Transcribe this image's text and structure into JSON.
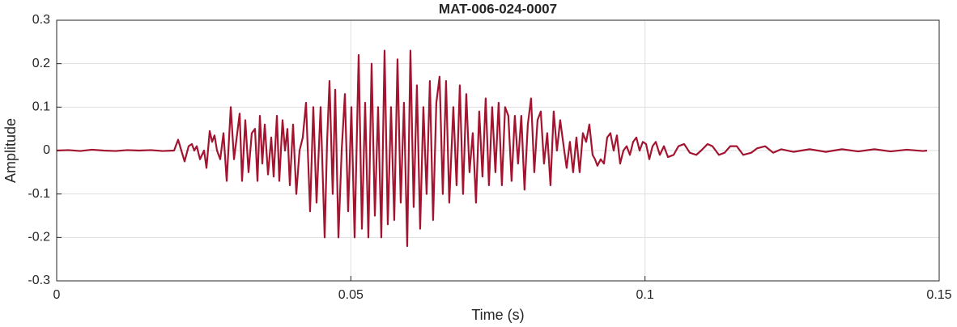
{
  "chart_data": {
    "type": "line",
    "title": "MAT-006-024-0007",
    "xlabel": "Time (s)",
    "ylabel": "Amplitude",
    "color": "#a2142f",
    "grid": true,
    "xlim": [
      0,
      0.15
    ],
    "xticks": [
      0,
      0.05,
      0.1,
      0.15
    ],
    "ylim": [
      -0.3,
      0.3
    ],
    "yticks": [
      0.3,
      0.2,
      0.1,
      0,
      -0.1,
      -0.2,
      -0.3
    ],
    "x": [
      0,
      0.002,
      0.004,
      0.006,
      0.008,
      0.01,
      0.012,
      0.014,
      0.016,
      0.018,
      0.01995,
      0.02064,
      0.02119,
      0.02174,
      0.02243,
      0.02298,
      0.02339,
      0.02381,
      0.02436,
      0.02505,
      0.02546,
      0.02601,
      0.02642,
      0.02683,
      0.02725,
      0.0278,
      0.02835,
      0.0289,
      0.02959,
      0.03014,
      0.03069,
      0.0311,
      0.03151,
      0.03206,
      0.03261,
      0.03316,
      0.03371,
      0.03413,
      0.03454,
      0.03495,
      0.03537,
      0.03592,
      0.03647,
      0.03688,
      0.03743,
      0.03784,
      0.03839,
      0.03881,
      0.03922,
      0.03963,
      0.04018,
      0.04073,
      0.04128,
      0.04183,
      0.04238,
      0.04307,
      0.04362,
      0.04417,
      0.04486,
      0.04555,
      0.04596,
      0.04637,
      0.04692,
      0.04734,
      0.04789,
      0.04844,
      0.04899,
      0.04954,
      0.05009,
      0.05064,
      0.05133,
      0.05188,
      0.05243,
      0.05298,
      0.05353,
      0.05408,
      0.05463,
      0.05518,
      0.05573,
      0.05628,
      0.05683,
      0.05738,
      0.05793,
      0.05848,
      0.05903,
      0.05958,
      0.06013,
      0.06068,
      0.06123,
      0.06178,
      0.06233,
      0.06288,
      0.06343,
      0.06398,
      0.06453,
      0.06508,
      0.06563,
      0.06618,
      0.06673,
      0.06742,
      0.06797,
      0.06852,
      0.06907,
      0.06962,
      0.07017,
      0.07072,
      0.07127,
      0.07182,
      0.07237,
      0.07292,
      0.07347,
      0.07402,
      0.07457,
      0.07512,
      0.07567,
      0.07622,
      0.07677,
      0.07732,
      0.07787,
      0.07842,
      0.07897,
      0.07952,
      0.08008,
      0.08063,
      0.08118,
      0.08173,
      0.08228,
      0.08283,
      0.08338,
      0.08393,
      0.08448,
      0.08503,
      0.08558,
      0.08627,
      0.08668,
      0.08723,
      0.08778,
      0.08834,
      0.08889,
      0.08944,
      0.08999,
      0.09054,
      0.09109,
      0.0915,
      0.09191,
      0.09247,
      0.09302,
      0.09357,
      0.09412,
      0.09467,
      0.09522,
      0.09577,
      0.09633,
      0.09688,
      0.09743,
      0.09798,
      0.09853,
      0.09908,
      0.09963,
      0.10018,
      0.10073,
      0.10128,
      0.10183,
      0.10252,
      0.10321,
      0.1039,
      0.10486,
      0.10568,
      0.10665,
      0.10761,
      0.10871,
      0.10954,
      0.11064,
      0.11146,
      0.11256,
      0.11353,
      0.11449,
      0.11559,
      0.11669,
      0.11807,
      0.11903,
      0.12041,
      0.12178,
      0.12316,
      0.12522,
      0.12798,
      0.13073,
      0.13348,
      0.13623,
      0.13899,
      0.14174,
      0.14449,
      0.14724,
      0.14793
    ],
    "values": [
      0,
      0.001,
      -0.001,
      0.002,
      0,
      -0.001,
      0.001,
      0,
      0.001,
      -0.001,
      0,
      0.025,
      0,
      -0.025,
      0.01,
      0.015,
      0,
      0.01,
      -0.02,
      0,
      -0.04,
      0.045,
      0.02,
      0.035,
      0,
      -0.02,
      0.04,
      -0.07,
      0.1,
      -0.02,
      0.04,
      0.085,
      -0.07,
      0.07,
      -0.05,
      0.04,
      0.05,
      -0.07,
      0.08,
      -0.03,
      0.06,
      -0.055,
      0.03,
      -0.06,
      0.08,
      -0.07,
      0.07,
      0,
      0.05,
      -0.08,
      0.06,
      -0.1,
      0,
      0.03,
      0.11,
      -0.14,
      0.1,
      -0.12,
      0.1,
      -0.2,
      0.02,
      0.16,
      -0.1,
      0.14,
      -0.2,
      0,
      0.13,
      -0.14,
      0.1,
      -0.2,
      0.22,
      -0.18,
      0.11,
      -0.2,
      0.2,
      -0.15,
      0.1,
      -0.2,
      0.23,
      -0.17,
      0.1,
      -0.16,
      0.21,
      -0.12,
      0.11,
      -0.22,
      0.23,
      -0.13,
      0.15,
      -0.18,
      0.1,
      -0.1,
      0.16,
      -0.16,
      0.11,
      0.17,
      -0.1,
      0.16,
      -0.12,
      0.1,
      -0.08,
      0.15,
      -0.1,
      0.13,
      -0.05,
      0.04,
      -0.12,
      0.09,
      -0.06,
      0.12,
      -0.08,
      0.1,
      -0.05,
      0.11,
      -0.08,
      0.1,
      0.08,
      -0.07,
      0.08,
      -0.03,
      0.08,
      -0.09,
      0.06,
      0.12,
      -0.05,
      0.07,
      0.09,
      -0.03,
      0.04,
      -0.08,
      0.09,
      0,
      0.07,
      0,
      -0.04,
      0.02,
      -0.05,
      0.03,
      -0.05,
      0.04,
      0.02,
      0.06,
      -0.01,
      -0.02,
      -0.035,
      -0.02,
      -0.03,
      0.03,
      0.04,
      0,
      0.035,
      -0.03,
      0,
      0.01,
      -0.01,
      0.02,
      0.03,
      0,
      0.02,
      0.015,
      -0.02,
      0.01,
      0.02,
      -0.01,
      0.01,
      -0.015,
      -0.01,
      0.01,
      0.015,
      -0.005,
      -0.01,
      0,
      0.015,
      0.01,
      -0.01,
      -0.005,
      0.01,
      0.01,
      -0.01,
      -0.005,
      0.005,
      0.01,
      -0.005,
      0.003,
      -0.003,
      0.003,
      -0.003,
      0.003,
      -0.002,
      0.003,
      -0.002,
      0.002,
      -0.001,
      0
    ]
  }
}
